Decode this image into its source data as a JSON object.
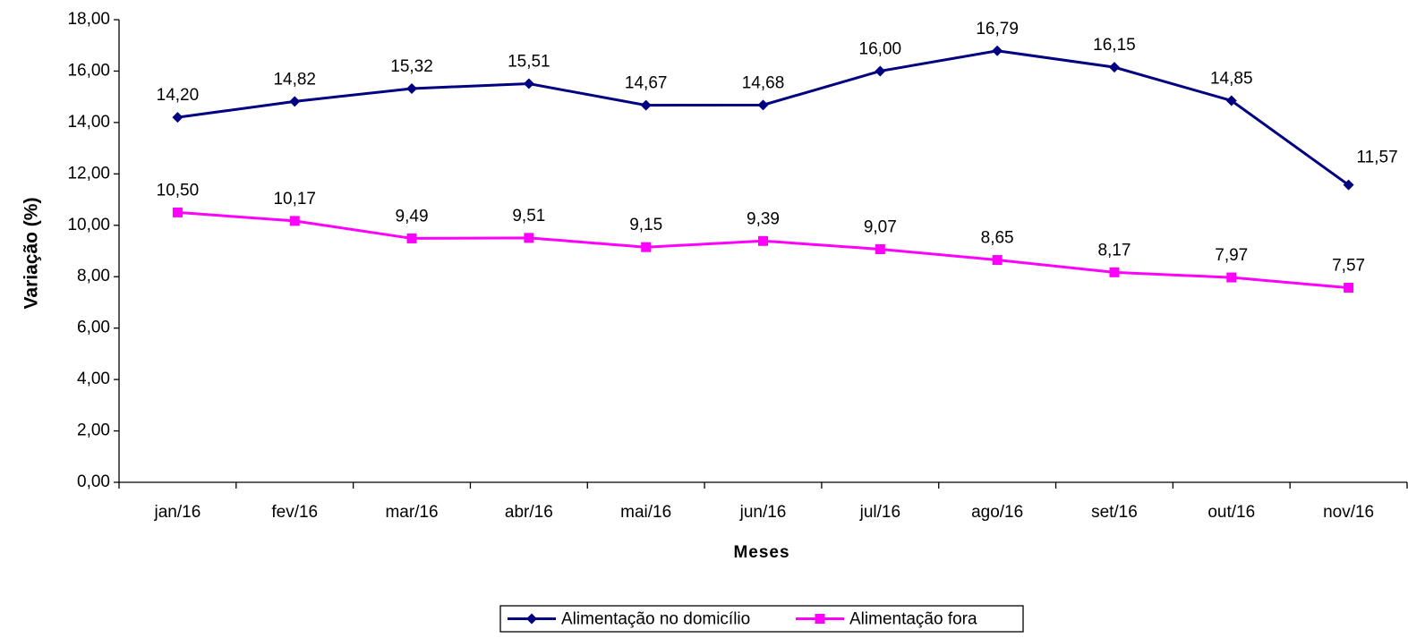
{
  "chart_data": {
    "type": "line",
    "x_label": "Meses",
    "y_label": "Variação (%)",
    "categories": [
      "jan/16",
      "fev/16",
      "mar/16",
      "abr/16",
      "mai/16",
      "jun/16",
      "jul/16",
      "ago/16",
      "set/16",
      "out/16",
      "nov/16"
    ],
    "series": [
      {
        "name": "Alimentação no domicílio",
        "color": "#000080",
        "marker": "diamond",
        "values": [
          14.2,
          14.82,
          15.32,
          15.51,
          14.67,
          14.68,
          16.0,
          16.79,
          16.15,
          14.85,
          11.57
        ],
        "value_labels": [
          "14,20",
          "14,82",
          "15,32",
          "15,51",
          "14,67",
          "14,68",
          "16,00",
          "16,79",
          "16,15",
          "14,85",
          "11,57"
        ]
      },
      {
        "name": "Alimentação fora",
        "color": "#ff00ff",
        "marker": "square",
        "values": [
          10.5,
          10.17,
          9.49,
          9.51,
          9.15,
          9.39,
          9.07,
          8.65,
          8.17,
          7.97,
          7.57
        ],
        "value_labels": [
          "10,50",
          "10,17",
          "9,49",
          "9,51",
          "9,15",
          "9,39",
          "9,07",
          "8,65",
          "8,17",
          "7,97",
          "7,57"
        ]
      }
    ],
    "ylim": [
      0,
      18
    ],
    "yticks": [
      {
        "value": 0,
        "label": "0,00"
      },
      {
        "value": 2,
        "label": "2,00"
      },
      {
        "value": 4,
        "label": "4,00"
      },
      {
        "value": 6,
        "label": "6,00"
      },
      {
        "value": 8,
        "label": "8,00"
      },
      {
        "value": 10,
        "label": "10,00"
      },
      {
        "value": 12,
        "label": "12,00"
      },
      {
        "value": 14,
        "label": "14,00"
      },
      {
        "value": 16,
        "label": "16,00"
      },
      {
        "value": 18,
        "label": "18,00"
      }
    ],
    "grid": false,
    "legend": "bottom"
  }
}
